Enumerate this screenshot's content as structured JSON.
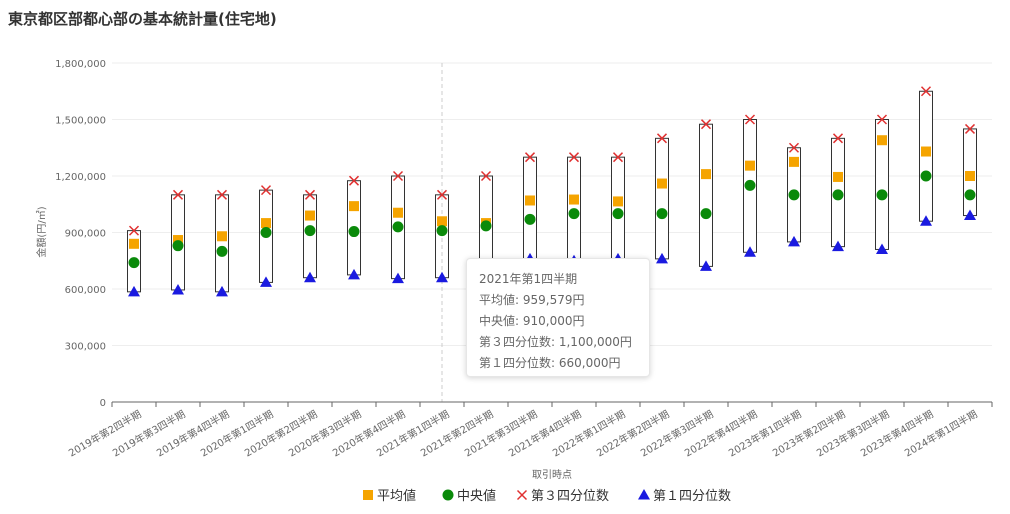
{
  "title": "東京都区部都心部の基本統計量(住宅地)",
  "colors": {
    "mean": "#f5a400",
    "median": "#0a8a0a",
    "q3": "#e03030",
    "q1": "#1a1ae0",
    "box": "#333333",
    "grid": "#eeeeee"
  },
  "chart_data": {
    "type": "box",
    "xlabel": "取引時点",
    "ylabel": "金額(円/㎡)",
    "ylim": [
      0,
      1800000
    ],
    "yticks": [
      0,
      300000,
      600000,
      900000,
      1200000,
      1500000,
      1800000
    ],
    "ytick_labels": [
      "0",
      "300,000",
      "600,000",
      "900,000",
      "1,200,000",
      "1,500,000",
      "1,800,000"
    ],
    "legend_position": "bottom",
    "categories": [
      "2019年第2四半期",
      "2019年第3四半期",
      "2019年第4四半期",
      "2020年第1四半期",
      "2020年第2四半期",
      "2020年第3四半期",
      "2020年第4四半期",
      "2021年第1四半期",
      "2021年第2四半期",
      "2021年第3四半期",
      "2021年第4四半期",
      "2022年第1四半期",
      "2022年第2四半期",
      "2022年第3四半期",
      "2022年第4四半期",
      "2023年第1四半期",
      "2023年第2四半期",
      "2023年第3四半期",
      "2023年第4四半期",
      "2024年第1四半期"
    ],
    "series": [
      {
        "name": "平均値",
        "key": "mean",
        "values": [
          840000,
          860000,
          880000,
          950000,
          990000,
          1040000,
          1005000,
          959579,
          950000,
          1070000,
          1075000,
          1065000,
          1160000,
          1210000,
          1255000,
          1275000,
          1195000,
          1390000,
          1330000,
          1200000
        ]
      },
      {
        "name": "中央値",
        "key": "median",
        "values": [
          740000,
          830000,
          800000,
          900000,
          910000,
          905000,
          930000,
          910000,
          935000,
          970000,
          1000000,
          1000000,
          1000000,
          1000000,
          1150000,
          1100000,
          1100000,
          1100000,
          1200000,
          1100000
        ]
      },
      {
        "name": "第３四分位数",
        "key": "q3",
        "values": [
          910000,
          1100000,
          1100000,
          1125000,
          1100000,
          1175000,
          1200000,
          1100000,
          1200000,
          1300000,
          1300000,
          1300000,
          1400000,
          1475000,
          1500000,
          1350000,
          1400000,
          1500000,
          1650000,
          1450000
        ]
      },
      {
        "name": "第１四分位数",
        "key": "q1",
        "values": [
          585000,
          595000,
          585000,
          635000,
          660000,
          675000,
          655000,
          660000,
          660000,
          760000,
          750000,
          760000,
          760000,
          720000,
          795000,
          850000,
          825000,
          810000,
          960000,
          990000
        ]
      }
    ]
  },
  "tooltip": {
    "title": "2021年第1四半期",
    "line1": "平均値: 959,579円",
    "line2": "中央値: 910,000円",
    "line3": "第３四分位数: 1,100,000円",
    "line4": "第１四分位数: 660,000円"
  }
}
